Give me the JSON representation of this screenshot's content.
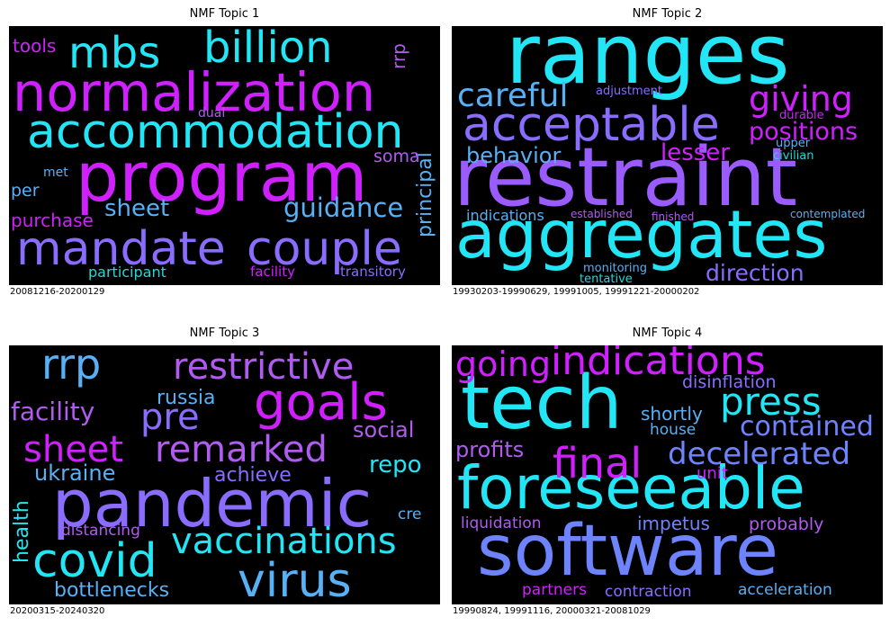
{
  "panels": [
    {
      "title": "NMF Topic 1",
      "caption": "20081216-20200129",
      "words": [
        {
          "text": "program",
          "color": "#d020ff"
        },
        {
          "text": "normalization",
          "color": "#d020ff"
        },
        {
          "text": "accommodation",
          "color": "#22e6f5"
        },
        {
          "text": "mandate",
          "color": "#8a6cff"
        },
        {
          "text": "couple",
          "color": "#8a6cff"
        },
        {
          "text": "billion",
          "color": "#22e6f5"
        },
        {
          "text": "mbs",
          "color": "#22e6f5"
        },
        {
          "text": "guidance",
          "color": "#58b0f5"
        },
        {
          "text": "sheet",
          "color": "#58b0f5"
        },
        {
          "text": "principal",
          "color": "#58b0f5"
        },
        {
          "text": "purchase",
          "color": "#d020ff"
        },
        {
          "text": "tools",
          "color": "#d020ff"
        },
        {
          "text": "soma",
          "color": "#b05cf0"
        },
        {
          "text": "per",
          "color": "#58b0f5"
        },
        {
          "text": "participant",
          "color": "#22d8d8"
        },
        {
          "text": "facility",
          "color": "#d020ff"
        },
        {
          "text": "transitory",
          "color": "#8a6cff"
        },
        {
          "text": "dual",
          "color": "#b05cf0"
        },
        {
          "text": "met",
          "color": "#58b0f5"
        },
        {
          "text": "rrp",
          "color": "#b05cf0"
        }
      ]
    },
    {
      "title": "NMF Topic 2",
      "caption": "19930203-19990629, 19991005, 19991221-20000202",
      "words": [
        {
          "text": "ranges",
          "color": "#22e6f5"
        },
        {
          "text": "restraint",
          "color": "#9a5cff"
        },
        {
          "text": "aggregates",
          "color": "#22e6f5"
        },
        {
          "text": "acceptable",
          "color": "#8a6cff"
        },
        {
          "text": "careful",
          "color": "#58b0f5"
        },
        {
          "text": "giving",
          "color": "#d020ff"
        },
        {
          "text": "positions",
          "color": "#d020ff"
        },
        {
          "text": "behavior",
          "color": "#58b0f5"
        },
        {
          "text": "lesser",
          "color": "#d020ff"
        },
        {
          "text": "direction",
          "color": "#8a6cff"
        },
        {
          "text": "adjustment",
          "color": "#8a6cff"
        },
        {
          "text": "durable",
          "color": "#d020ff"
        },
        {
          "text": "upper",
          "color": "#58b0f5"
        },
        {
          "text": "civilian",
          "color": "#22d8d8"
        },
        {
          "text": "indications",
          "color": "#58b0f5"
        },
        {
          "text": "established",
          "color": "#b05cf0"
        },
        {
          "text": "finished",
          "color": "#b05cf0"
        },
        {
          "text": "contemplated",
          "color": "#58b0f5"
        },
        {
          "text": "monitoring",
          "color": "#58b0f5"
        },
        {
          "text": "tentative",
          "color": "#22d8d8"
        }
      ]
    },
    {
      "title": "NMF Topic 3",
      "caption": "20200315-20240320",
      "words": [
        {
          "text": "pandemic",
          "color": "#8a6cff"
        },
        {
          "text": "covid",
          "color": "#22e6f5"
        },
        {
          "text": "virus",
          "color": "#58b0f5"
        },
        {
          "text": "vaccinations",
          "color": "#22e6f5"
        },
        {
          "text": "goals",
          "color": "#d020ff"
        },
        {
          "text": "restrictive",
          "color": "#b05cf0"
        },
        {
          "text": "sheet",
          "color": "#d020ff"
        },
        {
          "text": "remarked",
          "color": "#b05cf0"
        },
        {
          "text": "rrp",
          "color": "#58b0f5"
        },
        {
          "text": "pre",
          "color": "#8a6cff"
        },
        {
          "text": "facility",
          "color": "#b05cf0"
        },
        {
          "text": "russia",
          "color": "#58b0f5"
        },
        {
          "text": "social",
          "color": "#b05cf0"
        },
        {
          "text": "repo",
          "color": "#22e6f5"
        },
        {
          "text": "ukraine",
          "color": "#58b0f5"
        },
        {
          "text": "achieve",
          "color": "#8a6cff"
        },
        {
          "text": "health",
          "color": "#22e6f5"
        },
        {
          "text": "distancing",
          "color": "#b05cf0"
        },
        {
          "text": "cre",
          "color": "#58b0f5"
        },
        {
          "text": "bottlenecks",
          "color": "#58b0f5"
        }
      ]
    },
    {
      "title": "NMF Topic 4",
      "caption": "19990824, 19991116, 20000321-20081029",
      "words": [
        {
          "text": "tech",
          "color": "#22e6f5"
        },
        {
          "text": "foreseeable",
          "color": "#22e6f5"
        },
        {
          "text": "software",
          "color": "#6e84ff"
        },
        {
          "text": "indications",
          "color": "#d020ff"
        },
        {
          "text": "going",
          "color": "#d020ff"
        },
        {
          "text": "press",
          "color": "#22e6f5"
        },
        {
          "text": "final",
          "color": "#d020ff"
        },
        {
          "text": "decelerated",
          "color": "#6e84ff"
        },
        {
          "text": "contained",
          "color": "#6e84ff"
        },
        {
          "text": "disinflation",
          "color": "#8a6cff"
        },
        {
          "text": "shortly",
          "color": "#58b0f5"
        },
        {
          "text": "house",
          "color": "#58b0f5"
        },
        {
          "text": "profits",
          "color": "#b05cf0"
        },
        {
          "text": "unit",
          "color": "#d020ff"
        },
        {
          "text": "liquidation",
          "color": "#b05cf0"
        },
        {
          "text": "impetus",
          "color": "#6e84ff"
        },
        {
          "text": "probably",
          "color": "#b05cf0"
        },
        {
          "text": "partners",
          "color": "#d020ff"
        },
        {
          "text": "contraction",
          "color": "#8a6cff"
        },
        {
          "text": "acceleration",
          "color": "#58b0f5"
        }
      ]
    }
  ]
}
